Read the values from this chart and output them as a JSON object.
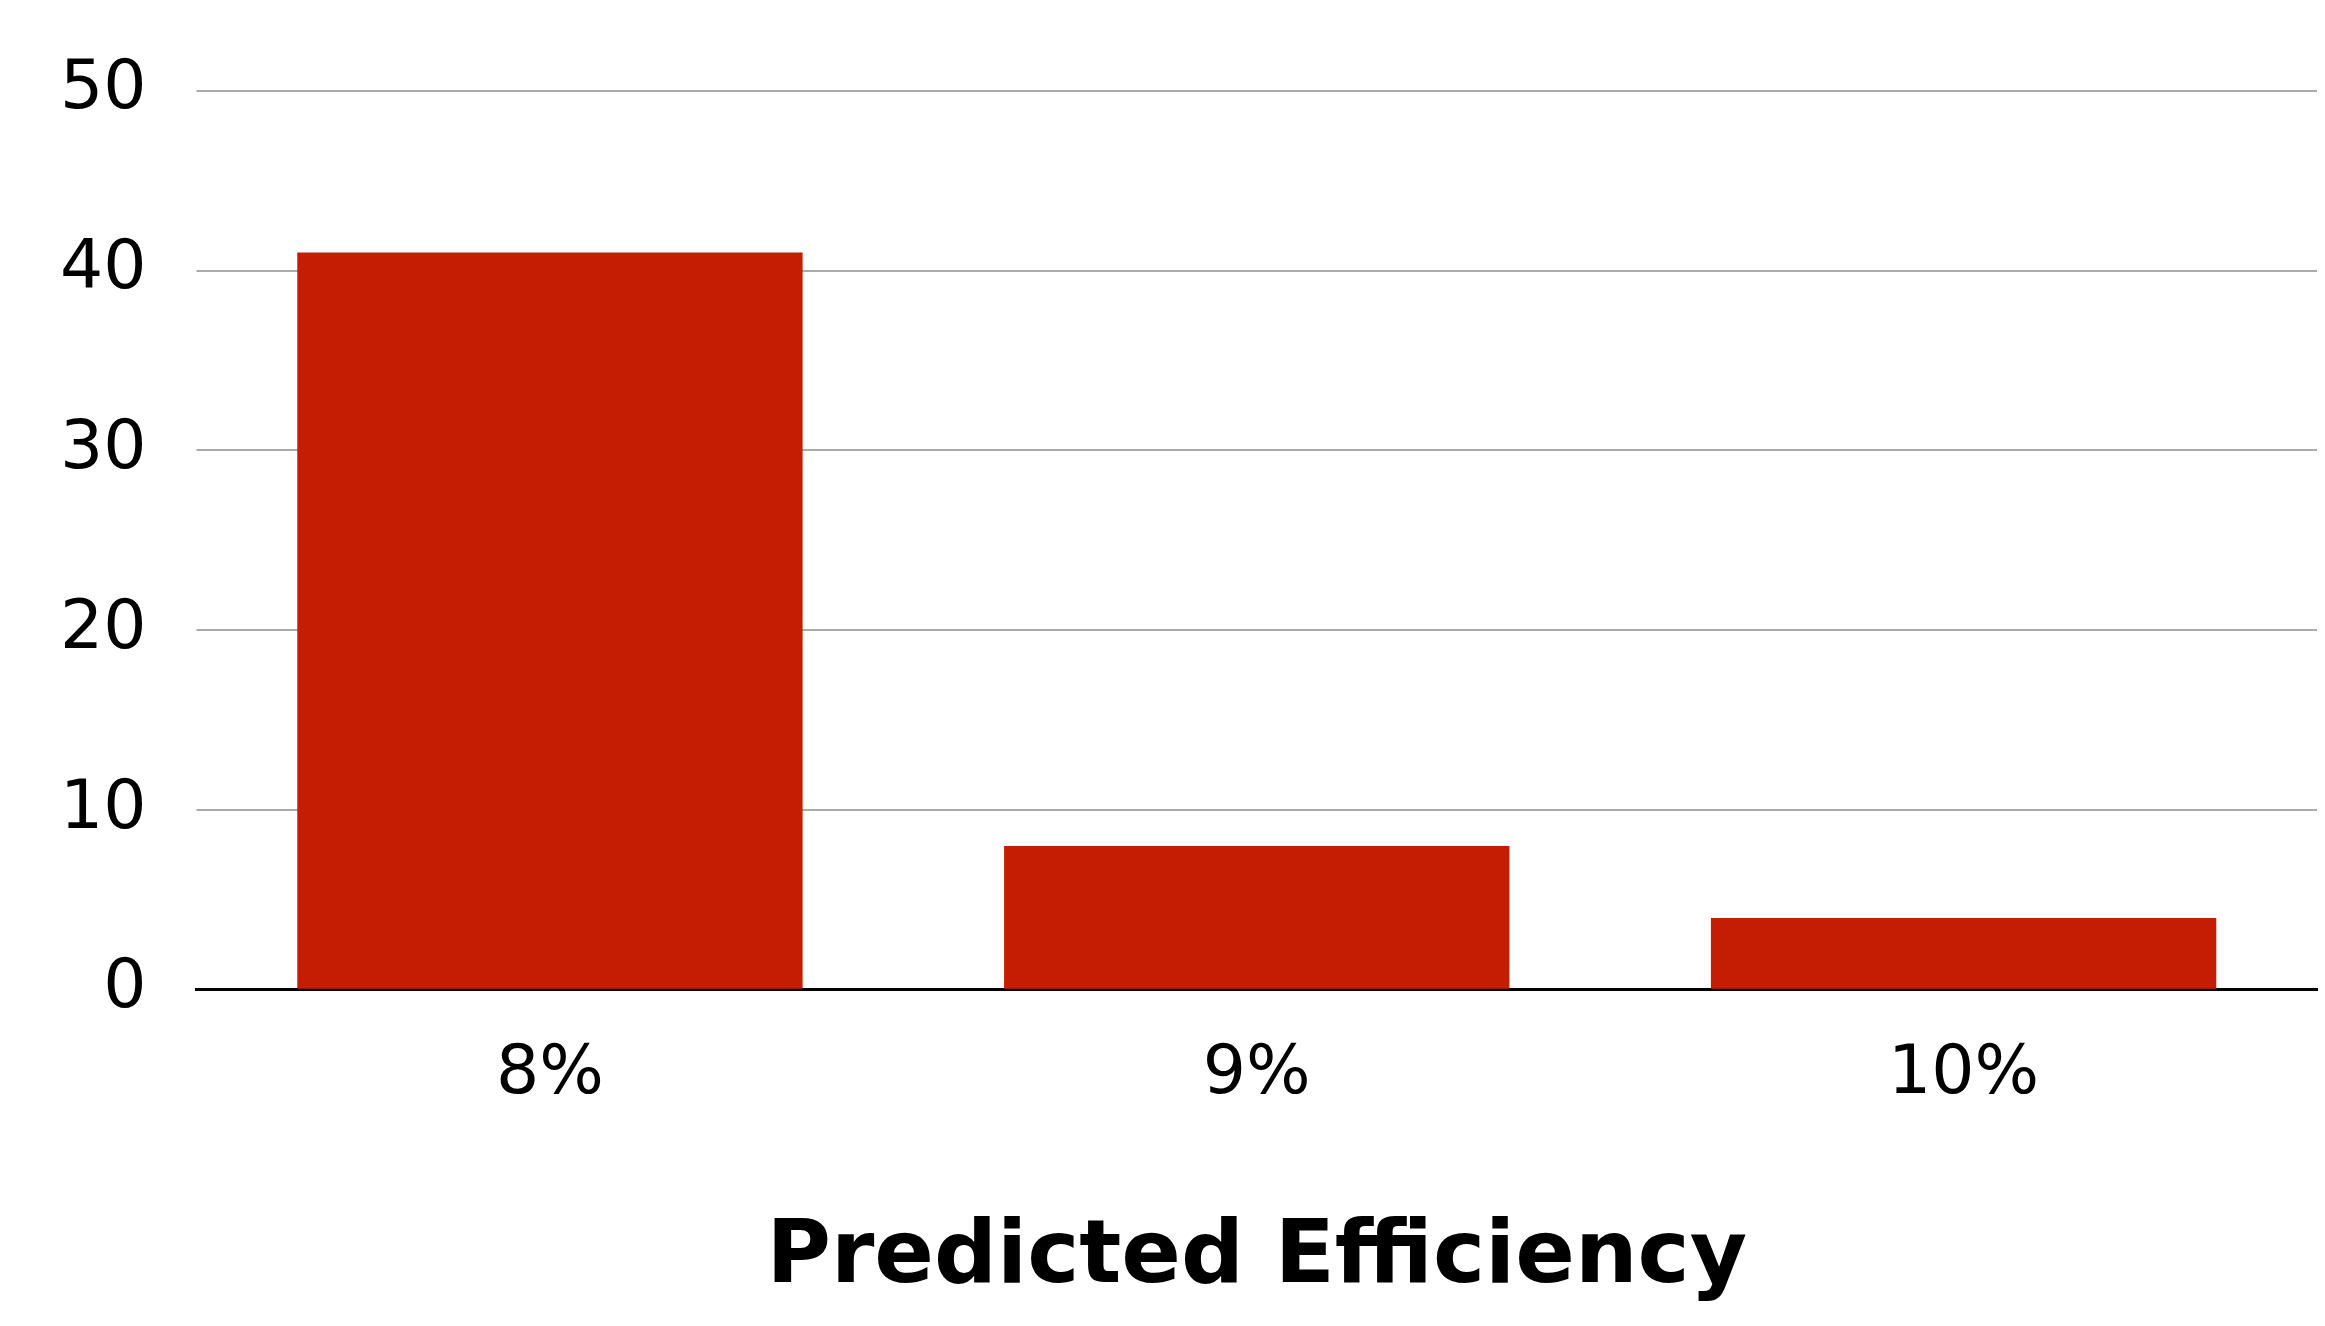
{
  "chart_data": {
    "type": "bar",
    "xlabel": "Predicted Efficiency",
    "categories": [
      "8%",
      "9%",
      "10%"
    ],
    "values": [
      41,
      8,
      4
    ],
    "color": "#c41d04",
    "ylim": [
      0,
      50
    ],
    "yticks": [
      0,
      10,
      20,
      30,
      40,
      50
    ],
    "grid": "y",
    "legend": false
  }
}
